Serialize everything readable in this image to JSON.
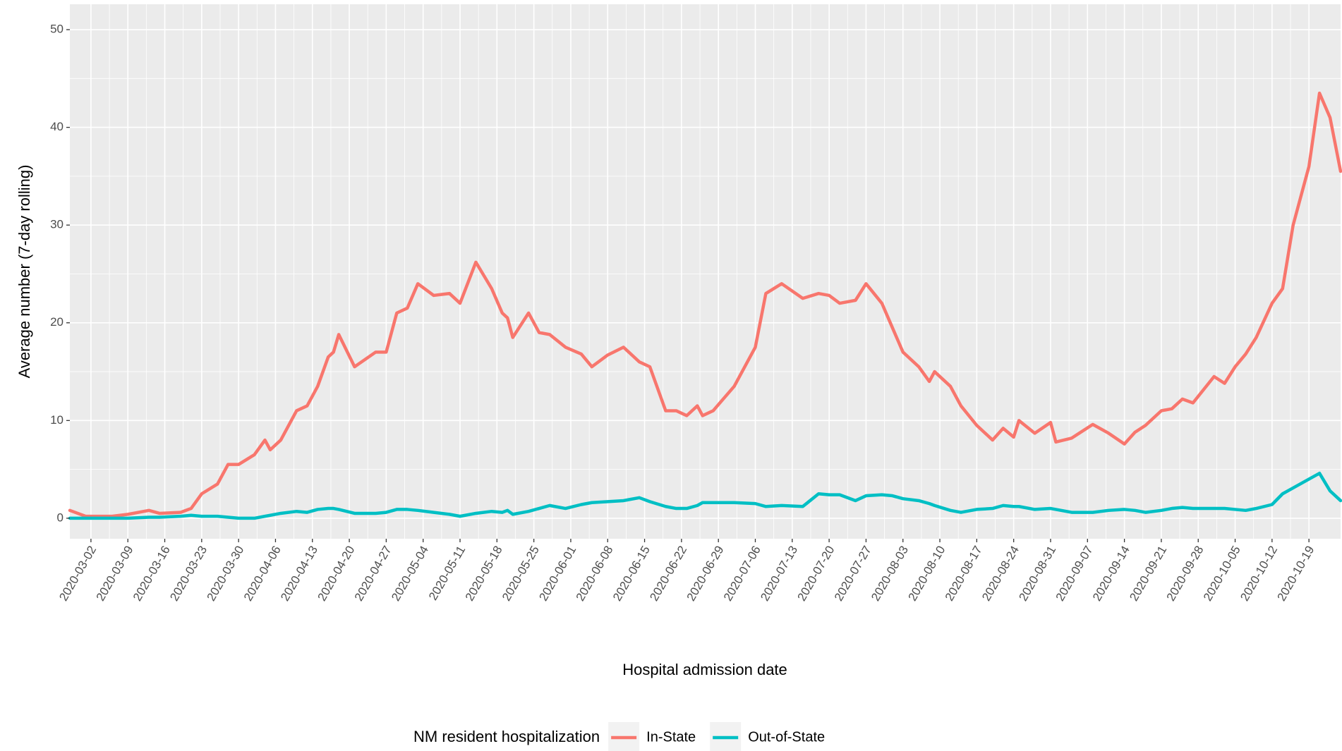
{
  "chart_data": {
    "type": "line",
    "x_label": "Hospital admission date",
    "y_label": "Average number (7-day rolling)",
    "legend_title": "NM resident hospitalization",
    "legend_position": "bottom",
    "grid": true,
    "x": [
      "2020-02-27",
      "2020-03-01",
      "2020-03-06",
      "2020-03-09",
      "2020-03-13",
      "2020-03-15",
      "2020-03-19",
      "2020-03-21",
      "2020-03-23",
      "2020-03-26",
      "2020-03-28",
      "2020-03-30",
      "2020-04-02",
      "2020-04-04",
      "2020-04-05",
      "2020-04-07",
      "2020-04-10",
      "2020-04-12",
      "2020-04-14",
      "2020-04-16",
      "2020-04-17",
      "2020-04-18",
      "2020-04-21",
      "2020-04-25",
      "2020-04-27",
      "2020-04-29",
      "2020-05-01",
      "2020-05-03",
      "2020-05-06",
      "2020-05-09",
      "2020-05-11",
      "2020-05-14",
      "2020-05-17",
      "2020-05-19",
      "2020-05-20",
      "2020-05-21",
      "2020-05-24",
      "2020-05-26",
      "2020-05-28",
      "2020-05-31",
      "2020-06-03",
      "2020-06-05",
      "2020-06-08",
      "2020-06-11",
      "2020-06-14",
      "2020-06-16",
      "2020-06-19",
      "2020-06-21",
      "2020-06-23",
      "2020-06-25",
      "2020-06-26",
      "2020-06-28",
      "2020-07-02",
      "2020-07-06",
      "2020-07-08",
      "2020-07-11",
      "2020-07-15",
      "2020-07-18",
      "2020-07-20",
      "2020-07-22",
      "2020-07-25",
      "2020-07-27",
      "2020-07-30",
      "2020-08-01",
      "2020-08-03",
      "2020-08-06",
      "2020-08-08",
      "2020-08-09",
      "2020-08-12",
      "2020-08-14",
      "2020-08-17",
      "2020-08-20",
      "2020-08-22",
      "2020-08-24",
      "2020-08-25",
      "2020-08-28",
      "2020-08-31",
      "2020-09-01",
      "2020-09-04",
      "2020-09-08",
      "2020-09-11",
      "2020-09-14",
      "2020-09-16",
      "2020-09-18",
      "2020-09-21",
      "2020-09-23",
      "2020-09-25",
      "2020-09-27",
      "2020-10-01",
      "2020-10-03",
      "2020-10-05",
      "2020-10-07",
      "2020-10-09",
      "2020-10-12",
      "2020-10-14",
      "2020-10-16",
      "2020-10-19",
      "2020-10-21",
      "2020-10-23",
      "2020-10-25"
    ],
    "series": [
      {
        "name": "In-State",
        "color": "#F8766D",
        "values": [
          0.8,
          0.2,
          0.2,
          0.4,
          0.8,
          0.5,
          0.6,
          1.0,
          2.5,
          3.5,
          5.5,
          5.5,
          6.5,
          8,
          7,
          8,
          11,
          11.5,
          13.5,
          16.5,
          17,
          18.8,
          15.5,
          17,
          17,
          21,
          21.5,
          24,
          22.8,
          23,
          22,
          26.2,
          23.5,
          21,
          20.5,
          18.5,
          21,
          19,
          18.8,
          17.5,
          16.8,
          15.5,
          16.7,
          17.5,
          16,
          15.5,
          11,
          11,
          10.5,
          11.5,
          10.5,
          11,
          13.5,
          17.5,
          23,
          24,
          22.5,
          23,
          22.8,
          22,
          22.3,
          24,
          22,
          19.5,
          17,
          15.5,
          14,
          15,
          13.5,
          11.5,
          9.5,
          8,
          9.2,
          8.3,
          10,
          8.7,
          9.8,
          7.8,
          8.2,
          9.6,
          8.7,
          7.6,
          8.8,
          9.5,
          11,
          11.2,
          12.2,
          11.8,
          14.5,
          13.8,
          15.5,
          16.8,
          18.5,
          22,
          23.5,
          30,
          36,
          43.5,
          41,
          35.5
        ]
      },
      {
        "name": "Out-of-State",
        "color": "#00BFC4",
        "values": [
          0,
          0,
          0,
          0,
          0.1,
          0.1,
          0.2,
          0.3,
          0.2,
          0.2,
          0.1,
          0,
          0,
          0.2,
          0.3,
          0.5,
          0.7,
          0.6,
          0.9,
          1.0,
          1.0,
          0.9,
          0.5,
          0.5,
          0.6,
          0.9,
          0.9,
          0.8,
          0.6,
          0.4,
          0.2,
          0.5,
          0.7,
          0.6,
          0.8,
          0.4,
          0.7,
          1.0,
          1.3,
          1.0,
          1.4,
          1.6,
          1.7,
          1.8,
          2.1,
          1.7,
          1.2,
          1.0,
          1.0,
          1.3,
          1.6,
          1.6,
          1.6,
          1.5,
          1.2,
          1.3,
          1.2,
          2.5,
          2.4,
          2.4,
          1.8,
          2.3,
          2.4,
          2.3,
          2.0,
          1.8,
          1.5,
          1.3,
          0.8,
          0.6,
          0.9,
          1.0,
          1.3,
          1.2,
          1.2,
          0.9,
          1.0,
          0.9,
          0.6,
          0.6,
          0.8,
          0.9,
          0.8,
          0.6,
          0.8,
          1.0,
          1.1,
          1.0,
          1.0,
          1.0,
          0.9,
          0.8,
          1.0,
          1.4,
          2.5,
          3.1,
          4.0,
          4.6,
          2.8,
          1.8
        ]
      }
    ],
    "xlim": [
      "2020-02-27",
      "2020-10-25"
    ],
    "xticks": [
      "2020-03-02",
      "2020-03-09",
      "2020-03-16",
      "2020-03-23",
      "2020-03-30",
      "2020-04-06",
      "2020-04-13",
      "2020-04-20",
      "2020-04-27",
      "2020-05-04",
      "2020-05-11",
      "2020-05-18",
      "2020-05-25",
      "2020-06-01",
      "2020-06-08",
      "2020-06-15",
      "2020-06-22",
      "2020-06-29",
      "2020-07-06",
      "2020-07-13",
      "2020-07-20",
      "2020-07-27",
      "2020-08-03",
      "2020-08-10",
      "2020-08-17",
      "2020-08-24",
      "2020-08-31",
      "2020-09-07",
      "2020-09-14",
      "2020-09-21",
      "2020-09-28",
      "2020-10-05",
      "2020-10-12",
      "2020-10-19"
    ],
    "ylim": [
      -2.1,
      52.6
    ],
    "yticks": [
      0,
      10,
      20,
      30,
      40,
      50
    ]
  }
}
